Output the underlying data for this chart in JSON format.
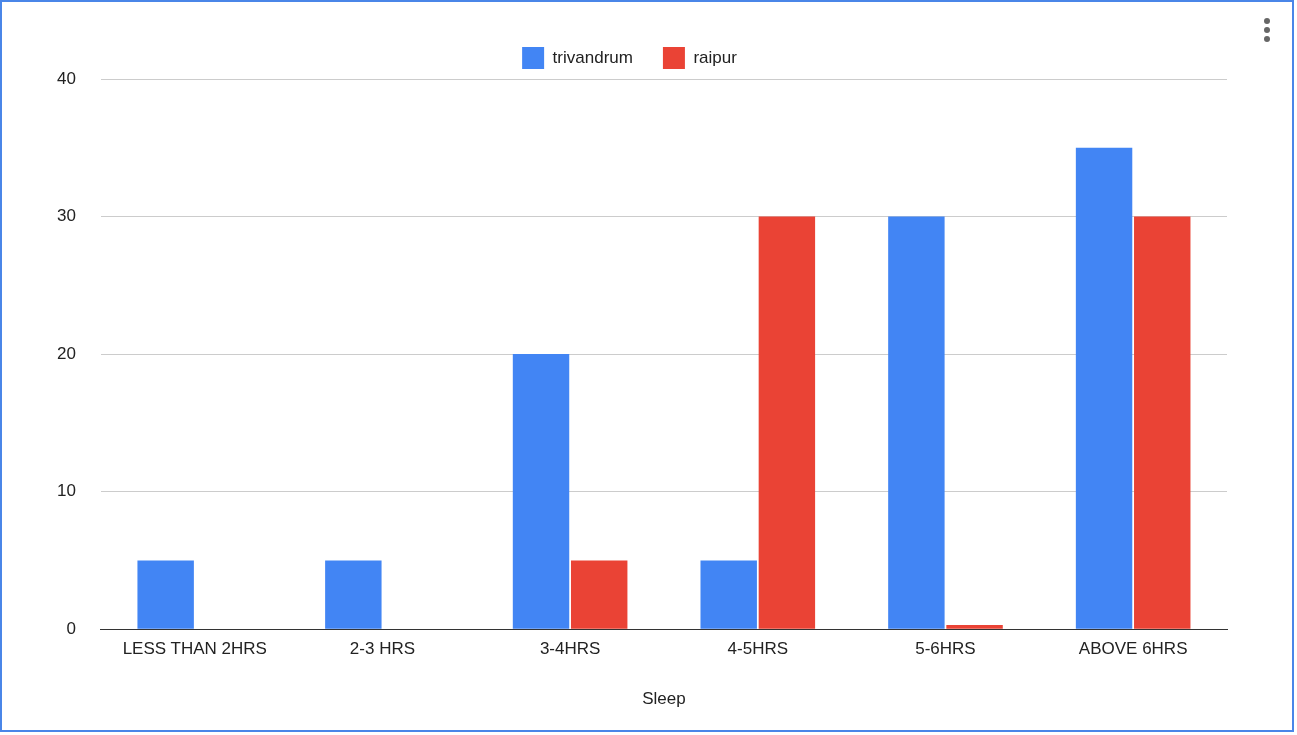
{
  "chart_data": {
    "type": "bar",
    "xlabel": "Sleep",
    "categories": [
      "LESS THAN 2HRS",
      "2-3 HRS",
      "3-4HRS",
      "4-5HRS",
      "5-6HRS",
      "ABOVE 6HRS"
    ],
    "series": [
      {
        "name": "trivandrum",
        "color": "#4285f4",
        "values": [
          5,
          5,
          20,
          5,
          30,
          35
        ]
      },
      {
        "name": "raipur",
        "color": "#ea4335",
        "values": [
          0,
          0,
          5,
          30,
          0.3,
          30
        ]
      }
    ],
    "ylim": [
      0,
      40
    ],
    "yticks": [
      0,
      10,
      20,
      30,
      40
    ],
    "grid": "y",
    "legend": "top"
  }
}
